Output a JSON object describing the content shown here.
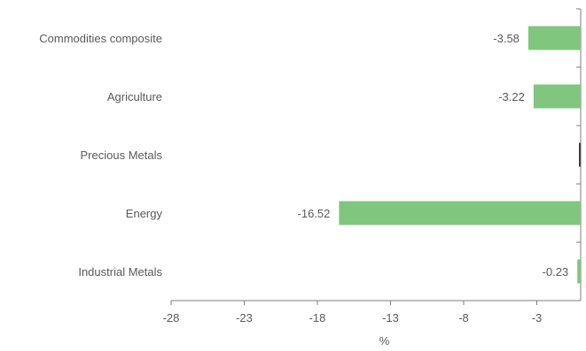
{
  "chart_data": {
    "type": "bar",
    "orientation": "horizontal",
    "categories": [
      "Commodities composite",
      "Agriculture",
      "Precious Metals",
      "Energy",
      "Industrial Metals"
    ],
    "values": [
      -3.58,
      -3.22,
      null,
      -16.52,
      -0.23
    ],
    "data_labels": [
      "-3.58",
      "-3.22",
      "",
      "-16.52",
      "-0.23"
    ],
    "xlabel": "%",
    "xlim": [
      -28,
      0
    ],
    "xticks": [
      -28,
      -23,
      -18,
      -13,
      -8,
      -3
    ],
    "grid": false,
    "legend": "none",
    "colors": {
      "bar": "#80c67f",
      "axis": "#7f7f7f",
      "text": "#595959",
      "zero_marker": "#404040"
    }
  }
}
